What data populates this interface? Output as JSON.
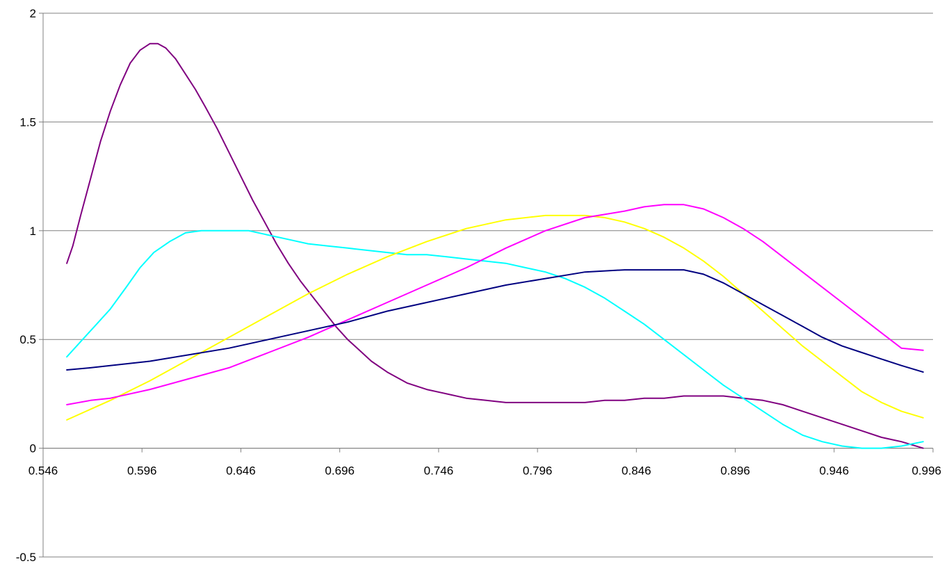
{
  "chart_data": {
    "type": "line",
    "title": "",
    "xlabel": "",
    "ylabel": "",
    "xlim": [
      0.546,
      0.996
    ],
    "ylim": [
      -0.5,
      2
    ],
    "x_ticks": [
      "0.546",
      "0.596",
      "0.646",
      "0.696",
      "0.746",
      "0.796",
      "0.846",
      "0.896",
      "0.946",
      "0.996"
    ],
    "y_ticks": [
      "-0.5",
      "0",
      "0.5",
      "1",
      "1.5",
      "2"
    ],
    "grid": true,
    "legend": "none",
    "series": [
      {
        "color": "#800080",
        "x": [
          0.558,
          0.561,
          0.565,
          0.57,
          0.575,
          0.58,
          0.585,
          0.59,
          0.595,
          0.6,
          0.604,
          0.608,
          0.613,
          0.618,
          0.623,
          0.628,
          0.634,
          0.64,
          0.646,
          0.652,
          0.658,
          0.664,
          0.67,
          0.676,
          0.682,
          0.688,
          0.694,
          0.7,
          0.706,
          0.712,
          0.72,
          0.73,
          0.74,
          0.75,
          0.76,
          0.77,
          0.78,
          0.79,
          0.8,
          0.81,
          0.82,
          0.83,
          0.84,
          0.85,
          0.86,
          0.87,
          0.88,
          0.89,
          0.9,
          0.91,
          0.92,
          0.93,
          0.94,
          0.95,
          0.96,
          0.97,
          0.98,
          0.991
        ],
        "y": [
          0.85,
          0.93,
          1.07,
          1.24,
          1.41,
          1.55,
          1.67,
          1.77,
          1.83,
          1.86,
          1.86,
          1.84,
          1.79,
          1.72,
          1.65,
          1.57,
          1.47,
          1.36,
          1.25,
          1.14,
          1.04,
          0.94,
          0.85,
          0.77,
          0.7,
          0.63,
          0.56,
          0.5,
          0.45,
          0.4,
          0.35,
          0.3,
          0.27,
          0.25,
          0.23,
          0.22,
          0.21,
          0.21,
          0.21,
          0.21,
          0.21,
          0.22,
          0.22,
          0.23,
          0.23,
          0.24,
          0.24,
          0.24,
          0.23,
          0.22,
          0.2,
          0.17,
          0.14,
          0.11,
          0.08,
          0.05,
          0.03,
          0.0
        ]
      },
      {
        "color": "#00FFFF",
        "x": [
          0.558,
          0.565,
          0.572,
          0.58,
          0.588,
          0.595,
          0.602,
          0.61,
          0.618,
          0.626,
          0.634,
          0.642,
          0.65,
          0.66,
          0.67,
          0.68,
          0.69,
          0.7,
          0.71,
          0.72,
          0.73,
          0.74,
          0.75,
          0.76,
          0.77,
          0.78,
          0.79,
          0.8,
          0.81,
          0.82,
          0.83,
          0.84,
          0.85,
          0.86,
          0.87,
          0.88,
          0.89,
          0.9,
          0.91,
          0.92,
          0.93,
          0.94,
          0.95,
          0.96,
          0.97,
          0.98,
          0.991
        ],
        "y": [
          0.42,
          0.49,
          0.56,
          0.64,
          0.74,
          0.83,
          0.9,
          0.95,
          0.99,
          1.0,
          1.0,
          1.0,
          1.0,
          0.98,
          0.96,
          0.94,
          0.93,
          0.92,
          0.91,
          0.9,
          0.89,
          0.89,
          0.88,
          0.87,
          0.86,
          0.85,
          0.83,
          0.81,
          0.78,
          0.74,
          0.69,
          0.63,
          0.57,
          0.5,
          0.43,
          0.36,
          0.29,
          0.23,
          0.17,
          0.11,
          0.06,
          0.03,
          0.01,
          0.0,
          0.0,
          0.01,
          0.03
        ]
      },
      {
        "color": "#FFFF00",
        "x": [
          0.558,
          0.58,
          0.6,
          0.62,
          0.64,
          0.66,
          0.68,
          0.7,
          0.72,
          0.74,
          0.76,
          0.78,
          0.8,
          0.81,
          0.82,
          0.83,
          0.84,
          0.85,
          0.86,
          0.87,
          0.88,
          0.89,
          0.9,
          0.91,
          0.92,
          0.93,
          0.94,
          0.95,
          0.96,
          0.97,
          0.98,
          0.991
        ],
        "y": [
          0.13,
          0.22,
          0.31,
          0.41,
          0.51,
          0.61,
          0.71,
          0.8,
          0.88,
          0.95,
          1.01,
          1.05,
          1.07,
          1.07,
          1.07,
          1.06,
          1.04,
          1.01,
          0.97,
          0.92,
          0.86,
          0.79,
          0.71,
          0.63,
          0.55,
          0.47,
          0.4,
          0.33,
          0.26,
          0.21,
          0.17,
          0.14
        ]
      },
      {
        "color": "#FF00FF",
        "x": [
          0.558,
          0.57,
          0.58,
          0.6,
          0.62,
          0.64,
          0.66,
          0.68,
          0.7,
          0.72,
          0.74,
          0.76,
          0.78,
          0.8,
          0.82,
          0.84,
          0.85,
          0.86,
          0.865,
          0.87,
          0.875,
          0.88,
          0.89,
          0.9,
          0.91,
          0.92,
          0.93,
          0.94,
          0.95,
          0.96,
          0.97,
          0.98,
          0.991
        ],
        "y": [
          0.2,
          0.22,
          0.23,
          0.27,
          0.32,
          0.37,
          0.44,
          0.51,
          0.59,
          0.67,
          0.75,
          0.83,
          0.92,
          1.0,
          1.06,
          1.09,
          1.11,
          1.12,
          1.12,
          1.12,
          1.11,
          1.1,
          1.06,
          1.01,
          0.95,
          0.88,
          0.81,
          0.74,
          0.67,
          0.6,
          0.53,
          0.46,
          0.45
        ]
      },
      {
        "color": "#000080",
        "x": [
          0.558,
          0.57,
          0.58,
          0.6,
          0.62,
          0.64,
          0.66,
          0.68,
          0.7,
          0.72,
          0.74,
          0.76,
          0.78,
          0.8,
          0.82,
          0.84,
          0.85,
          0.86,
          0.87,
          0.88,
          0.89,
          0.9,
          0.91,
          0.92,
          0.93,
          0.94,
          0.95,
          0.96,
          0.97,
          0.98,
          0.991
        ],
        "y": [
          0.36,
          0.37,
          0.38,
          0.4,
          0.43,
          0.46,
          0.5,
          0.54,
          0.58,
          0.63,
          0.67,
          0.71,
          0.75,
          0.78,
          0.81,
          0.82,
          0.82,
          0.82,
          0.82,
          0.8,
          0.76,
          0.71,
          0.66,
          0.61,
          0.56,
          0.51,
          0.47,
          0.44,
          0.41,
          0.38,
          0.35
        ]
      }
    ]
  }
}
